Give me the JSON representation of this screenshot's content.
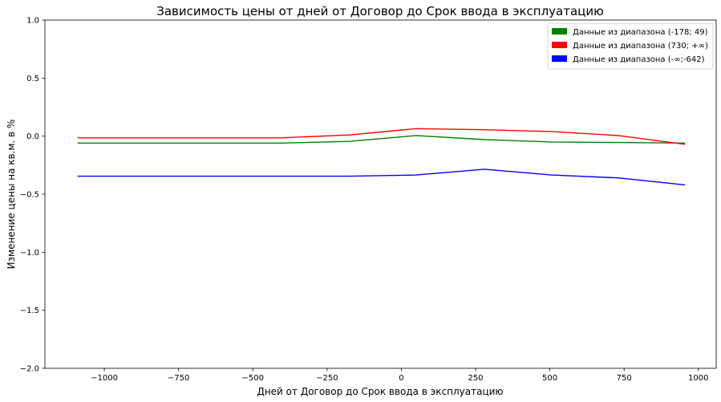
{
  "chart_data": {
    "type": "line",
    "title": "Зависимость цены от дней от Договор до Срок ввода в эксплуатацию",
    "xlabel": "Дней от Договор до Срок ввода в эксплуатацию",
    "ylabel": "Изменение цены на кв.м. в %",
    "xlim": [
      -1200,
      1060
    ],
    "ylim": [
      -2.0,
      1.0
    ],
    "xticks": [
      -1000,
      -750,
      -500,
      -250,
      0,
      250,
      500,
      750,
      1000
    ],
    "xtick_labels": [
      "−1000",
      "−750",
      "−500",
      "−250",
      "0",
      "250",
      "500",
      "750",
      "1000"
    ],
    "yticks": [
      1.0,
      0.5,
      0.0,
      -0.5,
      -1.0,
      -1.5,
      -2.0
    ],
    "ytick_labels": [
      "1.0",
      "0.5",
      "0.0",
      "−0.5",
      "−1.0",
      "−1.5",
      "−2.0"
    ],
    "grid": false,
    "legend_position": "top-right",
    "series": [
      {
        "name": "Данные из диапазона (-178; 49)",
        "color": "#008000",
        "x": [
          -1090,
          -405,
          -175,
          50,
          280,
          505,
          730,
          955
        ],
        "y": [
          -0.06,
          -0.06,
          -0.045,
          0.005,
          -0.03,
          -0.05,
          -0.055,
          -0.06
        ]
      },
      {
        "name": "Данные из диапазона (730; +∞)",
        "color": "#ff0000",
        "x": [
          -1090,
          -405,
          -175,
          50,
          280,
          505,
          730,
          955
        ],
        "y": [
          -0.015,
          -0.015,
          0.01,
          0.065,
          0.055,
          0.04,
          0.005,
          -0.07
        ]
      },
      {
        "name": "Данные из диапазона (-∞;-642)",
        "color": "#0000ff",
        "x": [
          -1090,
          -405,
          -175,
          50,
          280,
          505,
          730,
          955
        ],
        "y": [
          -0.345,
          -0.345,
          -0.345,
          -0.335,
          -0.285,
          -0.335,
          -0.36,
          -0.42
        ]
      }
    ]
  }
}
